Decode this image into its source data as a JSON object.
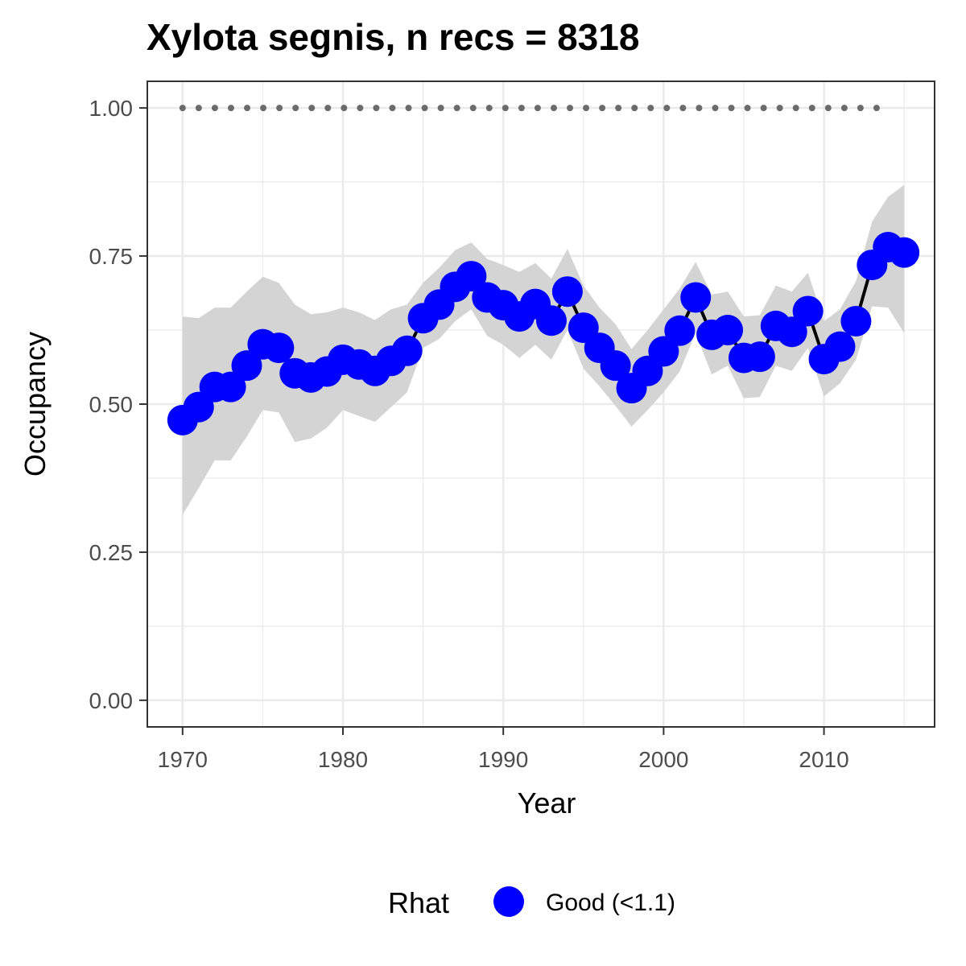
{
  "chart_data": {
    "type": "line",
    "title": "Xylota segnis, n recs = 8318",
    "xlabel": "Year",
    "ylabel": "Occupancy",
    "xlim": [
      1967.8,
      1016.9
    ],
    "ylim": [
      -0.045,
      1.045
    ],
    "x_ticks": [
      1970,
      1980,
      1990,
      2000,
      2010
    ],
    "x_tick_labels": [
      "1970",
      "1980",
      "1990",
      "2000",
      "2010"
    ],
    "y_ticks": [
      0,
      0.25,
      0.5,
      0.75,
      1.0
    ],
    "y_tick_labels": [
      "0.00",
      "0.25",
      "0.50",
      "0.75",
      "1.00"
    ],
    "grid": true,
    "legend": {
      "position": "bottom",
      "title": "Rhat",
      "entries": [
        {
          "label": "Good (<1.1)",
          "color": "#0000ff"
        }
      ]
    },
    "colors": {
      "points": "#0000ff",
      "line": "#000000",
      "ribbon": "#d4d4d4",
      "reference": "#6b6b6b"
    },
    "x": [
      1970,
      1971,
      1972,
      1973,
      1974,
      1975,
      1976,
      1977,
      1978,
      1979,
      1980,
      1981,
      1982,
      1983,
      1984,
      1985,
      1986,
      1987,
      1988,
      1989,
      1990,
      1991,
      1992,
      1993,
      1994,
      1995,
      1996,
      1997,
      1998,
      1999,
      2000,
      2001,
      2002,
      2003,
      2004,
      2005,
      2006,
      2007,
      2008,
      2009,
      2010,
      2011,
      2012,
      2013,
      2014,
      2015
    ],
    "series": [
      {
        "values": [
          0.473,
          0.495,
          0.529,
          0.529,
          0.565,
          0.601,
          0.595,
          0.552,
          0.545,
          0.555,
          0.575,
          0.567,
          0.556,
          0.573,
          0.59,
          0.645,
          0.668,
          0.698,
          0.716,
          0.68,
          0.667,
          0.648,
          0.669,
          0.641,
          0.69,
          0.629,
          0.595,
          0.565,
          0.527,
          0.556,
          0.589,
          0.624,
          0.68,
          0.617,
          0.625,
          0.578,
          0.58,
          0.632,
          0.622,
          0.657,
          0.576,
          0.597,
          0.64,
          0.735,
          0.765,
          0.756
        ]
      }
    ],
    "ci_lower": [
      0.313,
      0.358,
      0.405,
      0.405,
      0.445,
      0.49,
      0.486,
      0.436,
      0.442,
      0.46,
      0.49,
      0.48,
      0.47,
      0.495,
      0.52,
      0.595,
      0.61,
      0.64,
      0.66,
      0.615,
      0.6,
      0.578,
      0.6,
      0.575,
      0.625,
      0.56,
      0.53,
      0.497,
      0.462,
      0.49,
      0.52,
      0.555,
      0.62,
      0.55,
      0.565,
      0.51,
      0.512,
      0.565,
      0.556,
      0.595,
      0.513,
      0.535,
      0.575,
      0.665,
      0.663,
      0.62
    ],
    "ci_upper": [
      0.648,
      0.645,
      0.663,
      0.663,
      0.69,
      0.715,
      0.705,
      0.668,
      0.652,
      0.655,
      0.663,
      0.655,
      0.642,
      0.66,
      0.668,
      0.705,
      0.73,
      0.76,
      0.773,
      0.745,
      0.735,
      0.723,
      0.738,
      0.712,
      0.762,
      0.7,
      0.663,
      0.635,
      0.593,
      0.625,
      0.66,
      0.695,
      0.74,
      0.685,
      0.69,
      0.648,
      0.65,
      0.7,
      0.69,
      0.722,
      0.64,
      0.66,
      0.708,
      0.808,
      0.85,
      0.87
    ],
    "reference_line": {
      "y": 1.0,
      "x_range": [
        1970,
        2014
      ],
      "style": "dotted"
    }
  }
}
